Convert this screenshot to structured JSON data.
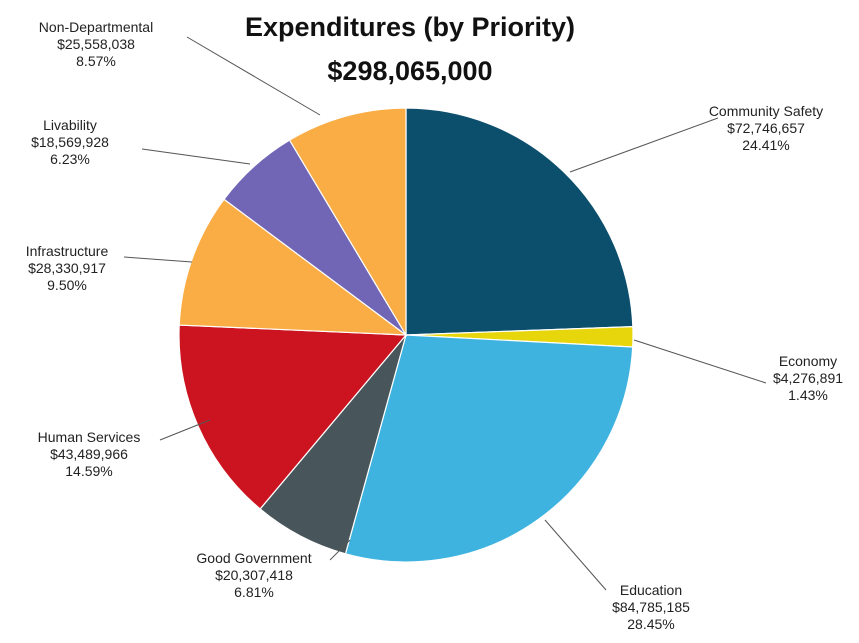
{
  "chart_data": {
    "type": "pie",
    "title": "Expenditures (by Priority)",
    "subtitle": "$298,065,000",
    "slices": [
      {
        "name": "Community Safety",
        "amount": "$72,746,657",
        "pct_label": "24.41%",
        "value": 24.41,
        "color": "#0b4f6c"
      },
      {
        "name": "Economy",
        "amount": "$4,276,891",
        "pct_label": "1.43%",
        "value": 1.43,
        "color": "#e8d60c"
      },
      {
        "name": "Education",
        "amount": "$84,785,185",
        "pct_label": "28.45%",
        "value": 28.45,
        "color": "#3fb3df"
      },
      {
        "name": "Good Government",
        "amount": "$20,307,418",
        "pct_label": "6.81%",
        "value": 6.81,
        "color": "#48555a"
      },
      {
        "name": "Human Services",
        "amount": "$43,489,966",
        "pct_label": "14.59%",
        "value": 14.59,
        "color": "#cc1420"
      },
      {
        "name": "Infrastructure",
        "amount": "$28,330,917",
        "pct_label": "9.50%",
        "value": 9.5,
        "color": "#fbad45"
      },
      {
        "name": "Livability",
        "amount": "$18,569,928",
        "pct_label": "6.23%",
        "value": 6.23,
        "color": "#7165b6"
      },
      {
        "name": "Non-Departmental",
        "amount": "$25,558,038",
        "pct_label": "8.57%",
        "value": 8.57,
        "color": "#fbad45"
      }
    ]
  }
}
